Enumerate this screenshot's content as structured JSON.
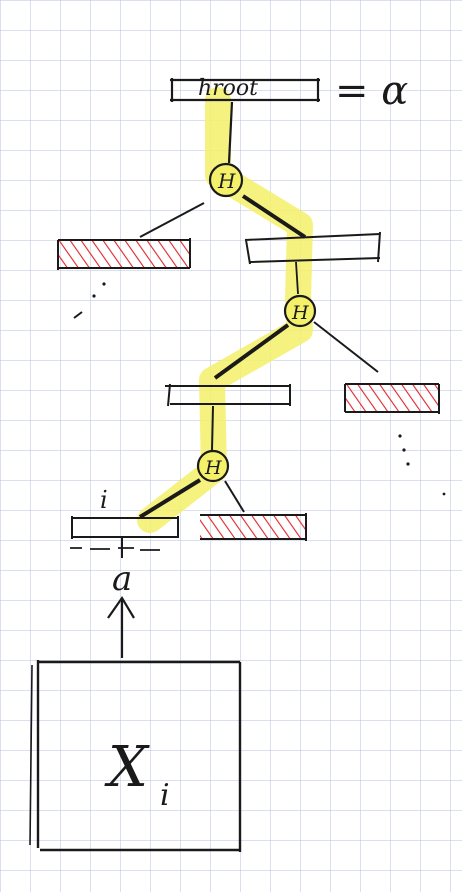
{
  "diagram": {
    "root_label": "hroot",
    "equals_label": "= α",
    "node_labels": {
      "top": "H",
      "middle": "H",
      "lower": "H"
    },
    "leaf_index_label": "i",
    "leaf_value_label": "a",
    "input_box_label": "X",
    "input_box_subscript": "i",
    "colors": {
      "grid": "#b9c2dc",
      "ink": "#1a1a1a",
      "highlight": "#f4f06a",
      "hatch": "#e0262b"
    }
  }
}
